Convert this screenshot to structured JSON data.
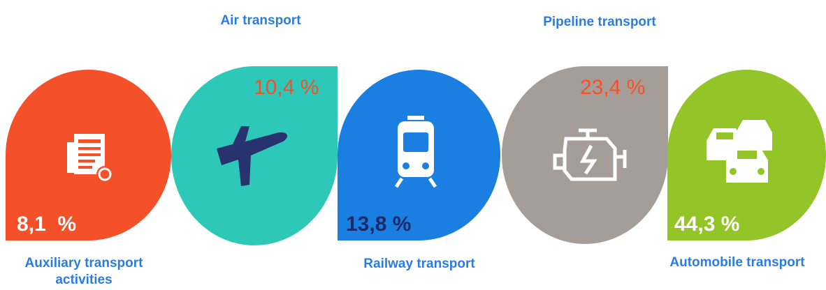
{
  "items": [
    {
      "label": "Auxiliary transport activities",
      "value": "8,1  %"
    },
    {
      "label": "Air transport",
      "value": "10,4 %"
    },
    {
      "label": "Railway transport",
      "value": "13,8 %"
    },
    {
      "label": "Pipeline transport",
      "value": "23,4 %"
    },
    {
      "label": "Automobile transport",
      "value": "44,3 %"
    }
  ]
}
